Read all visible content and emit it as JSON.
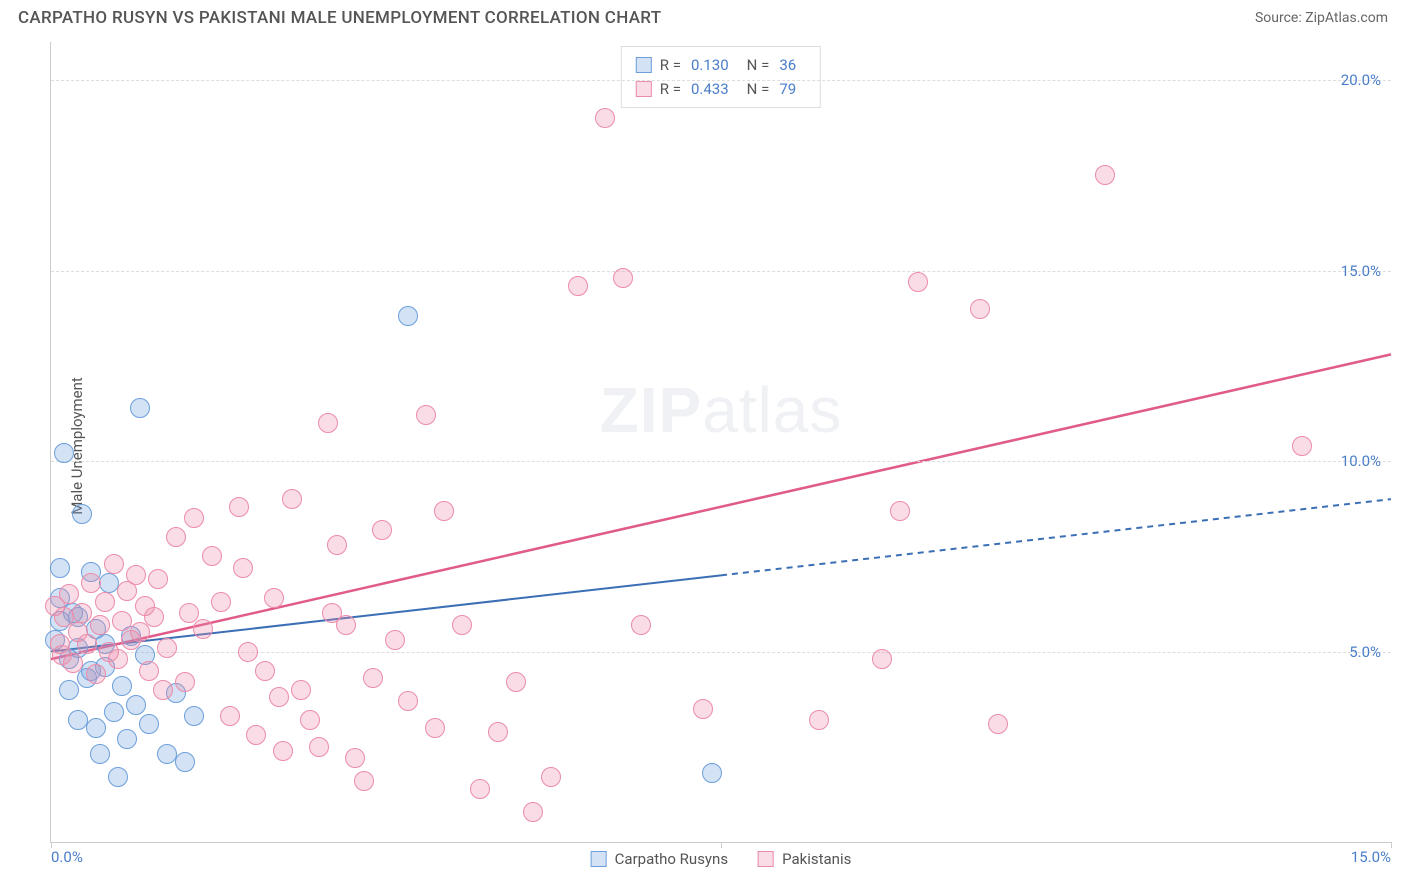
{
  "title": "CARPATHO RUSYN VS PAKISTANI MALE UNEMPLOYMENT CORRELATION CHART",
  "source": "Source: ZipAtlas.com",
  "ylabel": "Male Unemployment",
  "watermark_bold": "ZIP",
  "watermark_light": "atlas",
  "chart": {
    "type": "scatter",
    "xlim": [
      0,
      15
    ],
    "ylim": [
      0,
      21
    ],
    "y_gridlines": [
      5,
      10,
      15,
      20
    ],
    "y_tick_labels": [
      "5.0%",
      "10.0%",
      "15.0%",
      "20.0%"
    ],
    "x_ticks": [
      0,
      7.5,
      15
    ],
    "x_tick_labels": [
      "0.0%",
      "",
      "15.0%"
    ],
    "background_color": "#ffffff",
    "grid_color": "#dddddd",
    "axis_color": "#cccccc",
    "tick_label_color": "#4a7ec9",
    "label_color": "#555555",
    "marker_radius": 10,
    "marker_border_width": 1.5,
    "series": [
      {
        "name": "Carpatho Rusyns",
        "fill": "rgba(108,159,220,0.30)",
        "stroke": "#6c9fdc",
        "R": "0.130",
        "N": "36",
        "trend": {
          "x1": 0,
          "y1": 5.0,
          "x2": 7.5,
          "y2": 7.0,
          "dash_x2": 15,
          "dash_y2": 9.0,
          "color": "#3b6fb5",
          "width": 2
        },
        "points": [
          [
            0.05,
            5.3
          ],
          [
            0.1,
            5.8
          ],
          [
            0.1,
            6.4
          ],
          [
            0.1,
            7.2
          ],
          [
            0.15,
            10.2
          ],
          [
            0.2,
            4.0
          ],
          [
            0.2,
            4.8
          ],
          [
            0.25,
            6.0
          ],
          [
            0.3,
            3.2
          ],
          [
            0.3,
            5.1
          ],
          [
            0.35,
            8.6
          ],
          [
            0.4,
            4.3
          ],
          [
            0.45,
            7.1
          ],
          [
            0.5,
            3.0
          ],
          [
            0.5,
            5.6
          ],
          [
            0.55,
            2.3
          ],
          [
            0.6,
            4.6
          ],
          [
            0.6,
            5.2
          ],
          [
            0.65,
            6.8
          ],
          [
            0.7,
            3.4
          ],
          [
            0.75,
            1.7
          ],
          [
            0.8,
            4.1
          ],
          [
            0.85,
            2.7
          ],
          [
            0.9,
            5.4
          ],
          [
            0.95,
            3.6
          ],
          [
            1.0,
            11.4
          ],
          [
            1.05,
            4.9
          ],
          [
            1.1,
            3.1
          ],
          [
            1.3,
            2.3
          ],
          [
            1.4,
            3.9
          ],
          [
            1.5,
            2.1
          ],
          [
            1.6,
            3.3
          ],
          [
            4.0,
            13.8
          ],
          [
            7.4,
            1.8
          ],
          [
            0.3,
            5.9
          ],
          [
            0.45,
            4.5
          ]
        ]
      },
      {
        "name": "Pakistanis",
        "fill": "rgba(236,140,170,0.30)",
        "stroke": "#ec8caa",
        "R": "0.433",
        "N": "79",
        "trend": {
          "x1": 0,
          "y1": 4.8,
          "x2": 15,
          "y2": 12.8,
          "color": "#e05a8a",
          "width": 2.5
        },
        "points": [
          [
            0.1,
            5.2
          ],
          [
            0.15,
            5.9
          ],
          [
            0.2,
            6.5
          ],
          [
            0.25,
            4.7
          ],
          [
            0.3,
            5.5
          ],
          [
            0.35,
            6.0
          ],
          [
            0.4,
            5.2
          ],
          [
            0.45,
            6.8
          ],
          [
            0.5,
            4.4
          ],
          [
            0.55,
            5.7
          ],
          [
            0.6,
            6.3
          ],
          [
            0.65,
            5.0
          ],
          [
            0.7,
            7.3
          ],
          [
            0.75,
            4.8
          ],
          [
            0.8,
            5.8
          ],
          [
            0.85,
            6.6
          ],
          [
            0.9,
            5.3
          ],
          [
            0.95,
            7.0
          ],
          [
            1.0,
            5.5
          ],
          [
            1.05,
            6.2
          ],
          [
            1.1,
            4.5
          ],
          [
            1.15,
            5.9
          ],
          [
            1.2,
            6.9
          ],
          [
            1.3,
            5.1
          ],
          [
            1.4,
            8.0
          ],
          [
            1.5,
            4.2
          ],
          [
            1.6,
            8.5
          ],
          [
            1.7,
            5.6
          ],
          [
            1.8,
            7.5
          ],
          [
            1.9,
            6.3
          ],
          [
            2.0,
            3.3
          ],
          [
            2.1,
            8.8
          ],
          [
            2.2,
            5.0
          ],
          [
            2.3,
            2.8
          ],
          [
            2.4,
            4.5
          ],
          [
            2.5,
            6.4
          ],
          [
            2.6,
            2.4
          ],
          [
            2.7,
            9.0
          ],
          [
            2.8,
            4.0
          ],
          [
            2.9,
            3.2
          ],
          [
            3.0,
            2.5
          ],
          [
            3.1,
            11.0
          ],
          [
            3.2,
            7.8
          ],
          [
            3.3,
            5.7
          ],
          [
            3.4,
            2.2
          ],
          [
            3.5,
            1.6
          ],
          [
            3.6,
            4.3
          ],
          [
            3.7,
            8.2
          ],
          [
            4.0,
            3.7
          ],
          [
            4.2,
            11.2
          ],
          [
            4.4,
            8.7
          ],
          [
            4.6,
            5.7
          ],
          [
            4.8,
            1.4
          ],
          [
            5.0,
            2.9
          ],
          [
            5.2,
            4.2
          ],
          [
            5.4,
            0.8
          ],
          [
            5.6,
            1.7
          ],
          [
            5.9,
            14.6
          ],
          [
            6.2,
            19.0
          ],
          [
            6.4,
            14.8
          ],
          [
            6.6,
            5.7
          ],
          [
            7.3,
            3.5
          ],
          [
            8.6,
            3.2
          ],
          [
            9.3,
            4.8
          ],
          [
            9.5,
            8.7
          ],
          [
            9.7,
            14.7
          ],
          [
            10.4,
            14.0
          ],
          [
            10.6,
            3.1
          ],
          [
            11.8,
            17.5
          ],
          [
            14.0,
            10.4
          ],
          [
            1.25,
            4.0
          ],
          [
            1.55,
            6.0
          ],
          [
            2.15,
            7.2
          ],
          [
            2.55,
            3.8
          ],
          [
            3.15,
            6.0
          ],
          [
            3.85,
            5.3
          ],
          [
            4.3,
            3.0
          ],
          [
            0.05,
            6.2
          ],
          [
            0.12,
            4.9
          ]
        ]
      }
    ]
  },
  "legend": [
    {
      "label": "Carpatho Rusyns",
      "fill": "rgba(108,159,220,0.30)",
      "stroke": "#6c9fdc"
    },
    {
      "label": "Pakistanis",
      "fill": "rgba(236,140,170,0.30)",
      "stroke": "#ec8caa"
    }
  ]
}
